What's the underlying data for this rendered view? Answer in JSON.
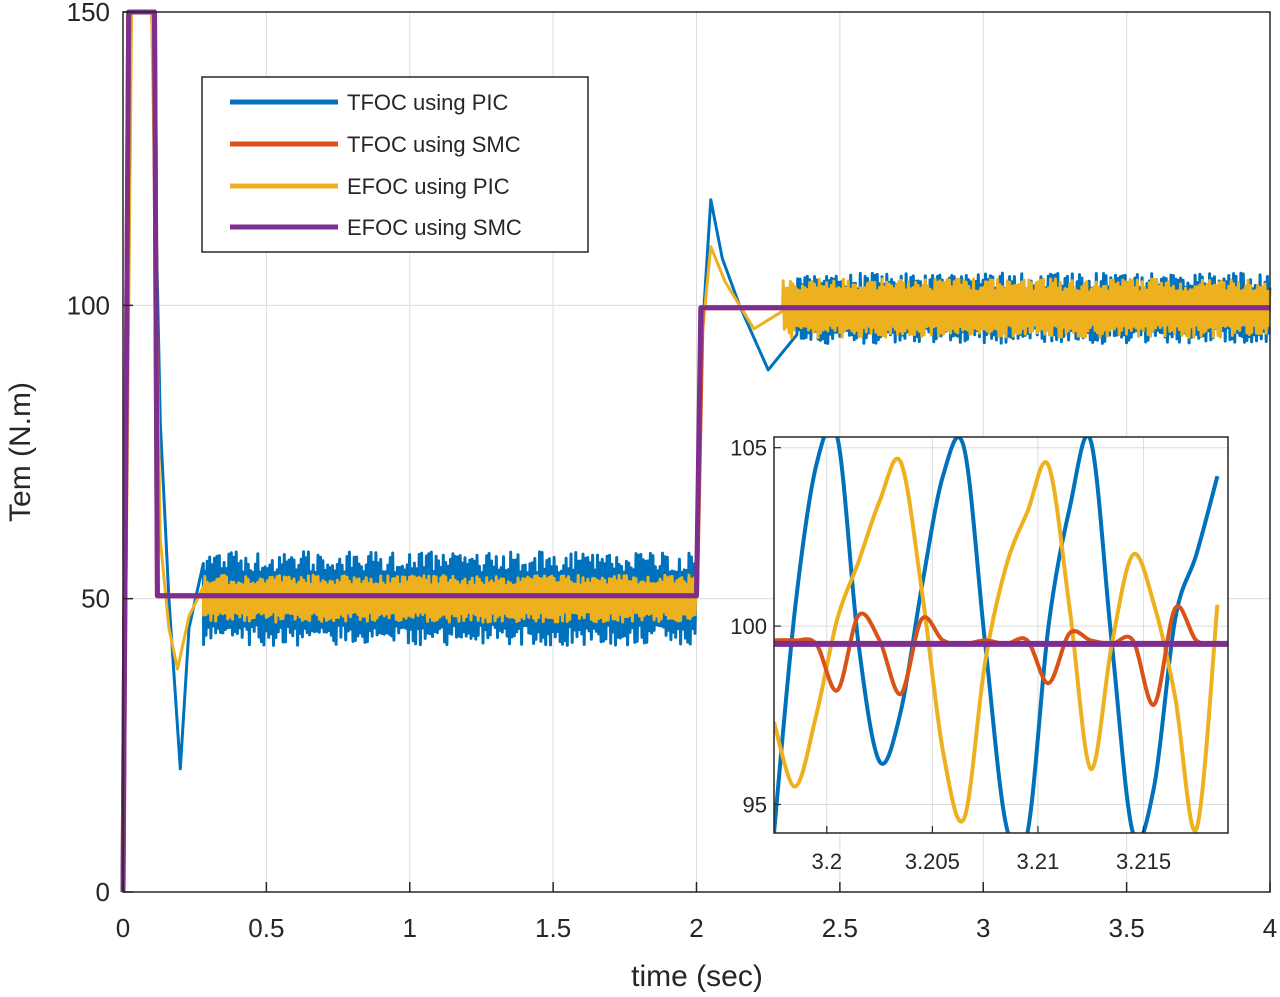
{
  "chart_data": [
    {
      "type": "line",
      "title": "",
      "xlabel": "time (sec)",
      "ylabel": "Tem (N.m)",
      "xlim": [
        0,
        4
      ],
      "ylim": [
        0,
        150
      ],
      "xticks": [
        "0",
        "0.5",
        "1",
        "1.5",
        "2",
        "2.5",
        "3",
        "3.5",
        "4"
      ],
      "yticks": [
        "0",
        "50",
        "100",
        "150"
      ],
      "grid": true,
      "legend_position": "top-left",
      "colors": {
        "pic_tfoc": "#0072BD",
        "smc_tfoc": "#D95319",
        "pic_efoc": "#EDB120",
        "smc_efoc": "#7E2F8E"
      },
      "series": [
        {
          "name": "TFOC using PIC",
          "color": "#0072BD",
          "description": "step to ~50 N.m at 0.11 s with undershoot to ~21, ripple about 42-58; step to ~100 at 2 s with overshoot to ~118, ripple about 93-106",
          "segments": [
            {
              "start": 0.13,
              "end": 2.0,
              "mean": 50,
              "ripple": 8
            },
            {
              "start": 2.0,
              "end": 4.0,
              "mean": 99.5,
              "ripple": 6
            }
          ],
          "points": [
            [
              0,
              0
            ],
            [
              0.02,
              150
            ],
            [
              0.1,
              150
            ],
            [
              0.13,
              80
            ],
            [
              0.16,
              50
            ],
            [
              0.2,
              21
            ],
            [
              0.23,
              45
            ],
            [
              0.28,
              56
            ]
          ],
          "points_step2": [
            [
              2.0,
              56
            ],
            [
              2.02,
              95
            ],
            [
              2.05,
              118
            ],
            [
              2.09,
              108
            ],
            [
              2.15,
              100
            ],
            [
              2.25,
              89
            ],
            [
              2.35,
              95
            ]
          ]
        },
        {
          "name": "TFOC using SMC",
          "color": "#D95319",
          "description": "tracks the reference almost exactly: 50 N.m then 99.6 N.m",
          "points": [
            [
              0,
              0
            ],
            [
              0.02,
              150
            ],
            [
              0.11,
              150
            ],
            [
              0.12,
              50.5
            ],
            [
              2.0,
              50.5
            ],
            [
              2.02,
              99.6
            ],
            [
              4.0,
              99.6
            ]
          ]
        },
        {
          "name": "EFOC using PIC",
          "color": "#EDB120",
          "description": "smaller ripple than TFOC PIC: about 46-54 then 94-104; undershoot to ~38 after first step, overshoot to ~110 after second",
          "segments": [
            {
              "start": 0.13,
              "end": 2.0,
              "mean": 50,
              "ripple": 4
            },
            {
              "start": 2.0,
              "end": 4.0,
              "mean": 99.5,
              "ripple": 5
            }
          ],
          "points": [
            [
              0,
              0
            ],
            [
              0.03,
              150
            ],
            [
              0.1,
              150
            ],
            [
              0.13,
              60
            ],
            [
              0.16,
              45
            ],
            [
              0.19,
              38
            ],
            [
              0.23,
              47
            ],
            [
              0.28,
              52
            ]
          ],
          "points_step2": [
            [
              2.0,
              52
            ],
            [
              2.02,
              95
            ],
            [
              2.05,
              110
            ],
            [
              2.1,
              104
            ],
            [
              2.2,
              96
            ],
            [
              2.3,
              99
            ]
          ]
        },
        {
          "name": "EFOC using SMC",
          "color": "#7E2F8E",
          "description": "ideal-like step response: 0 to 150 spike, 50.5 N.m, then 99.6 N.m",
          "points": [
            [
              0,
              0
            ],
            [
              0.02,
              150
            ],
            [
              0.11,
              150
            ],
            [
              0.12,
              50.5
            ],
            [
              2.0,
              50.5
            ],
            [
              2.015,
              99.6
            ],
            [
              4.0,
              99.6
            ]
          ]
        }
      ]
    },
    {
      "type": "line",
      "title": "",
      "inset": true,
      "xlim": [
        3.1975,
        3.219
      ],
      "ylim": [
        94.2,
        105.3
      ],
      "xticks": [
        "3.2",
        "3.205",
        "3.21",
        "3.215"
      ],
      "yticks": [
        "95",
        "100",
        "105"
      ],
      "grid": true,
      "series": [
        {
          "name": "TFOC using PIC",
          "color": "#0072BD",
          "x": [
            3.1975,
            3.1985,
            3.1995,
            3.2005,
            3.2015,
            3.2025,
            3.2035,
            3.2045,
            3.2055,
            3.2065,
            3.2075,
            3.2085,
            3.2095,
            3.2105,
            3.2115,
            3.2125,
            3.2135,
            3.2145,
            3.2155,
            3.2165,
            3.2175,
            3.2185
          ],
          "y": [
            94.2,
            100.5,
            104.5,
            105.3,
            99.5,
            96.2,
            97.6,
            101.1,
            104.2,
            105.0,
            99.5,
            94.4,
            94.2,
            100.0,
            103.3,
            105.2,
            99.5,
            94.2,
            95.5,
            100.2,
            102.0,
            104.2
          ]
        },
        {
          "name": "TFOC using SMC",
          "color": "#D95319",
          "x": [
            3.1975,
            3.1985,
            3.1995,
            3.2005,
            3.2015,
            3.2025,
            3.2035,
            3.2045,
            3.2055,
            3.2065,
            3.2075,
            3.2085,
            3.2095,
            3.2105,
            3.2115,
            3.2125,
            3.2135,
            3.2145,
            3.2155,
            3.2165,
            3.2175,
            3.2185
          ],
          "y": [
            99.6,
            99.6,
            99.5,
            98.2,
            100.3,
            99.6,
            98.1,
            100.2,
            99.6,
            99.5,
            99.6,
            99.5,
            99.6,
            98.4,
            99.8,
            99.6,
            99.5,
            99.6,
            97.8,
            100.5,
            99.6,
            99.5
          ]
        },
        {
          "name": "EFOC using PIC",
          "color": "#EDB120",
          "x": [
            3.1975,
            3.1985,
            3.1995,
            3.2005,
            3.2015,
            3.2025,
            3.2035,
            3.2045,
            3.2055,
            3.2065,
            3.2075,
            3.2085,
            3.2095,
            3.2105,
            3.2115,
            3.2125,
            3.2135,
            3.2145,
            3.2155,
            3.2165,
            3.2175,
            3.2185
          ],
          "y": [
            97.3,
            95.5,
            97.5,
            100.2,
            101.8,
            103.5,
            104.6,
            101.0,
            96.5,
            94.6,
            99.0,
            101.7,
            103.2,
            104.5,
            100.5,
            96.0,
            99.5,
            102.0,
            100.6,
            98.0,
            94.3,
            100.6
          ]
        },
        {
          "name": "EFOC using SMC",
          "color": "#7E2F8E",
          "x": [
            3.1975,
            3.219
          ],
          "y": [
            99.5,
            99.5
          ]
        }
      ]
    }
  ]
}
